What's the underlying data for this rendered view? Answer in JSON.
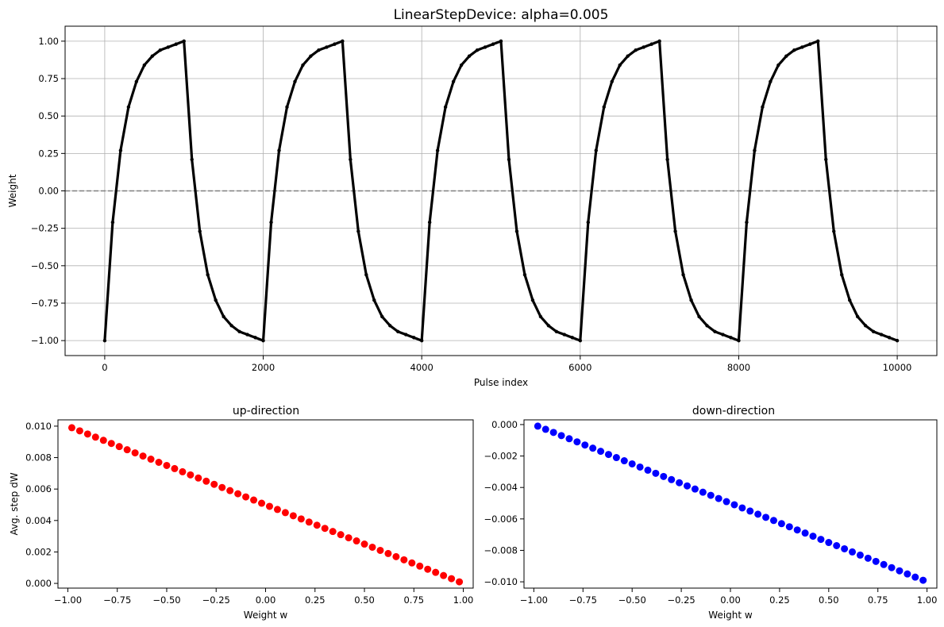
{
  "figure": {
    "main_title": "LinearStepDevice: alpha=0.005",
    "left_title": "up-direction",
    "right_title": "down-direction"
  },
  "chart_data": [
    {
      "type": "line",
      "title": "LinearStepDevice: alpha=0.005",
      "xlabel": "Pulse index",
      "ylabel": "Weight",
      "xlim": [
        -500,
        10500
      ],
      "ylim": [
        -1.1,
        1.1
      ],
      "xticks": [
        0,
        2000,
        4000,
        6000,
        8000,
        10000
      ],
      "yticks": [
        -1.0,
        -0.75,
        -0.5,
        -0.25,
        0.0,
        0.25,
        0.5,
        0.75,
        1.0
      ],
      "xtick_labels": [
        "0",
        "2000",
        "4000",
        "6000",
        "8000",
        "10000"
      ],
      "ytick_labels": [
        "−1.00",
        "−0.75",
        "−0.50",
        "−0.25",
        "0.00",
        "0.25",
        "0.50",
        "0.75",
        "1.00"
      ],
      "grid": true,
      "reference_line": {
        "y": 0.0,
        "style": "dashed",
        "color": "#808080"
      },
      "series": [
        {
          "color": "#000000",
          "x": [
            0,
            100,
            200,
            300,
            400,
            500,
            600,
            700,
            800,
            900,
            1000,
            1100,
            1200,
            1300,
            1400,
            1500,
            1600,
            1700,
            1800,
            1900,
            2000,
            2100,
            2200,
            2300,
            2400,
            2500,
            2600,
            2700,
            2800,
            2900,
            3000,
            3100,
            3200,
            3300,
            3400,
            3500,
            3600,
            3700,
            3800,
            3900,
            4000,
            4100,
            4200,
            4300,
            4400,
            4500,
            4600,
            4700,
            4800,
            4900,
            5000,
            5100,
            5200,
            5300,
            5400,
            5500,
            5600,
            5700,
            5800,
            5900,
            6000,
            6100,
            6200,
            6300,
            6400,
            6500,
            6600,
            6700,
            6800,
            6900,
            7000,
            7100,
            7200,
            7300,
            7400,
            7500,
            7600,
            7700,
            7800,
            7900,
            8000,
            8100,
            8200,
            8300,
            8400,
            8500,
            8600,
            8700,
            8800,
            8900,
            9000,
            9100,
            9200,
            9300,
            9400,
            9500,
            9600,
            9700,
            9800,
            9900,
            10000
          ],
          "y": [
            -1.0,
            -0.21,
            0.27,
            0.56,
            0.73,
            0.84,
            0.9,
            0.94,
            0.96,
            0.98,
            1.0,
            0.21,
            -0.27,
            -0.56,
            -0.73,
            -0.84,
            -0.9,
            -0.94,
            -0.96,
            -0.98,
            -1.0,
            -0.21,
            0.27,
            0.56,
            0.73,
            0.84,
            0.9,
            0.94,
            0.96,
            0.98,
            1.0,
            0.21,
            -0.27,
            -0.56,
            -0.73,
            -0.84,
            -0.9,
            -0.94,
            -0.96,
            -0.98,
            -1.0,
            -0.21,
            0.27,
            0.56,
            0.73,
            0.84,
            0.9,
            0.94,
            0.96,
            0.98,
            1.0,
            0.21,
            -0.27,
            -0.56,
            -0.73,
            -0.84,
            -0.9,
            -0.94,
            -0.96,
            -0.98,
            -1.0,
            -0.21,
            0.27,
            0.56,
            0.73,
            0.84,
            0.9,
            0.94,
            0.96,
            0.98,
            1.0,
            0.21,
            -0.27,
            -0.56,
            -0.73,
            -0.84,
            -0.9,
            -0.94,
            -0.96,
            -0.98,
            -1.0,
            -0.21,
            0.27,
            0.56,
            0.73,
            0.84,
            0.9,
            0.94,
            0.96,
            0.98,
            1.0,
            0.21,
            -0.27,
            -0.56,
            -0.73,
            -0.84,
            -0.9,
            -0.94,
            -0.96,
            -0.98,
            -1.0
          ]
        }
      ]
    },
    {
      "type": "scatter",
      "title": "up-direction",
      "xlabel": "Weight w",
      "ylabel": "Avg. step dW",
      "xlim": [
        -1.05,
        1.05
      ],
      "ylim": [
        -0.0003,
        0.0104
      ],
      "xticks": [
        -1.0,
        -0.75,
        -0.5,
        -0.25,
        0.0,
        0.25,
        0.5,
        0.75,
        1.0
      ],
      "yticks": [
        0.0,
        0.002,
        0.004,
        0.006,
        0.008,
        0.01
      ],
      "xtick_labels": [
        "−1.00",
        "−0.75",
        "−0.50",
        "−0.25",
        "0.00",
        "0.25",
        "0.50",
        "0.75",
        "1.00"
      ],
      "ytick_labels": [
        "0.000",
        "0.002",
        "0.004",
        "0.006",
        "0.008",
        "0.010"
      ],
      "grid": false,
      "series": [
        {
          "color": "#ff0000",
          "x": [
            -0.98,
            -0.94,
            -0.9,
            -0.86,
            -0.82,
            -0.78,
            -0.74,
            -0.7,
            -0.66,
            -0.62,
            -0.58,
            -0.54,
            -0.5,
            -0.46,
            -0.42,
            -0.38,
            -0.34,
            -0.3,
            -0.26,
            -0.22,
            -0.18,
            -0.14,
            -0.1,
            -0.06,
            -0.02,
            0.02,
            0.06,
            0.1,
            0.14,
            0.18,
            0.22,
            0.26,
            0.3,
            0.34,
            0.38,
            0.42,
            0.46,
            0.5,
            0.54,
            0.58,
            0.62,
            0.66,
            0.7,
            0.74,
            0.78,
            0.82,
            0.86,
            0.9,
            0.94,
            0.98
          ],
          "y": [
            0.0099,
            0.0097,
            0.0095,
            0.0093,
            0.0091,
            0.0089,
            0.0087,
            0.0085,
            0.0083,
            0.0081,
            0.0079,
            0.0077,
            0.0075,
            0.0073,
            0.0071,
            0.0069,
            0.0067,
            0.0065,
            0.0063,
            0.0061,
            0.0059,
            0.0057,
            0.0055,
            0.0053,
            0.0051,
            0.0049,
            0.0047,
            0.0045,
            0.0043,
            0.0041,
            0.0039,
            0.0037,
            0.0035,
            0.0033,
            0.0031,
            0.0029,
            0.0027,
            0.0025,
            0.0023,
            0.0021,
            0.0019,
            0.0017,
            0.0015,
            0.0013,
            0.0011,
            0.0009,
            0.0007,
            0.0005,
            0.0003,
            0.0001
          ]
        }
      ]
    },
    {
      "type": "scatter",
      "title": "down-direction",
      "xlabel": "Weight w",
      "ylabel": "",
      "xlim": [
        -1.05,
        1.05
      ],
      "ylim": [
        -0.0104,
        0.0003
      ],
      "xticks": [
        -1.0,
        -0.75,
        -0.5,
        -0.25,
        0.0,
        0.25,
        0.5,
        0.75,
        1.0
      ],
      "yticks": [
        -0.01,
        -0.008,
        -0.006,
        -0.004,
        -0.002,
        0.0
      ],
      "xtick_labels": [
        "−1.00",
        "−0.75",
        "−0.50",
        "−0.25",
        "0.00",
        "0.25",
        "0.50",
        "0.75",
        "1.00"
      ],
      "ytick_labels": [
        "−0.010",
        "−0.008",
        "−0.006",
        "−0.004",
        "−0.002",
        "0.000"
      ],
      "grid": false,
      "series": [
        {
          "color": "#0000ff",
          "x": [
            -0.98,
            -0.94,
            -0.9,
            -0.86,
            -0.82,
            -0.78,
            -0.74,
            -0.7,
            -0.66,
            -0.62,
            -0.58,
            -0.54,
            -0.5,
            -0.46,
            -0.42,
            -0.38,
            -0.34,
            -0.3,
            -0.26,
            -0.22,
            -0.18,
            -0.14,
            -0.1,
            -0.06,
            -0.02,
            0.02,
            0.06,
            0.1,
            0.14,
            0.18,
            0.22,
            0.26,
            0.3,
            0.34,
            0.38,
            0.42,
            0.46,
            0.5,
            0.54,
            0.58,
            0.62,
            0.66,
            0.7,
            0.74,
            0.78,
            0.82,
            0.86,
            0.9,
            0.94,
            0.98
          ],
          "y": [
            -0.0001,
            -0.0003,
            -0.0005,
            -0.0007,
            -0.0009,
            -0.0011,
            -0.0013,
            -0.0015,
            -0.0017,
            -0.0019,
            -0.0021,
            -0.0023,
            -0.0025,
            -0.0027,
            -0.0029,
            -0.0031,
            -0.0033,
            -0.0035,
            -0.0037,
            -0.0039,
            -0.0041,
            -0.0043,
            -0.0045,
            -0.0047,
            -0.0049,
            -0.0051,
            -0.0053,
            -0.0055,
            -0.0057,
            -0.0059,
            -0.0061,
            -0.0063,
            -0.0065,
            -0.0067,
            -0.0069,
            -0.0071,
            -0.0073,
            -0.0075,
            -0.0077,
            -0.0079,
            -0.0081,
            -0.0083,
            -0.0085,
            -0.0087,
            -0.0089,
            -0.0091,
            -0.0093,
            -0.0095,
            -0.0097,
            -0.0099
          ]
        }
      ]
    }
  ]
}
